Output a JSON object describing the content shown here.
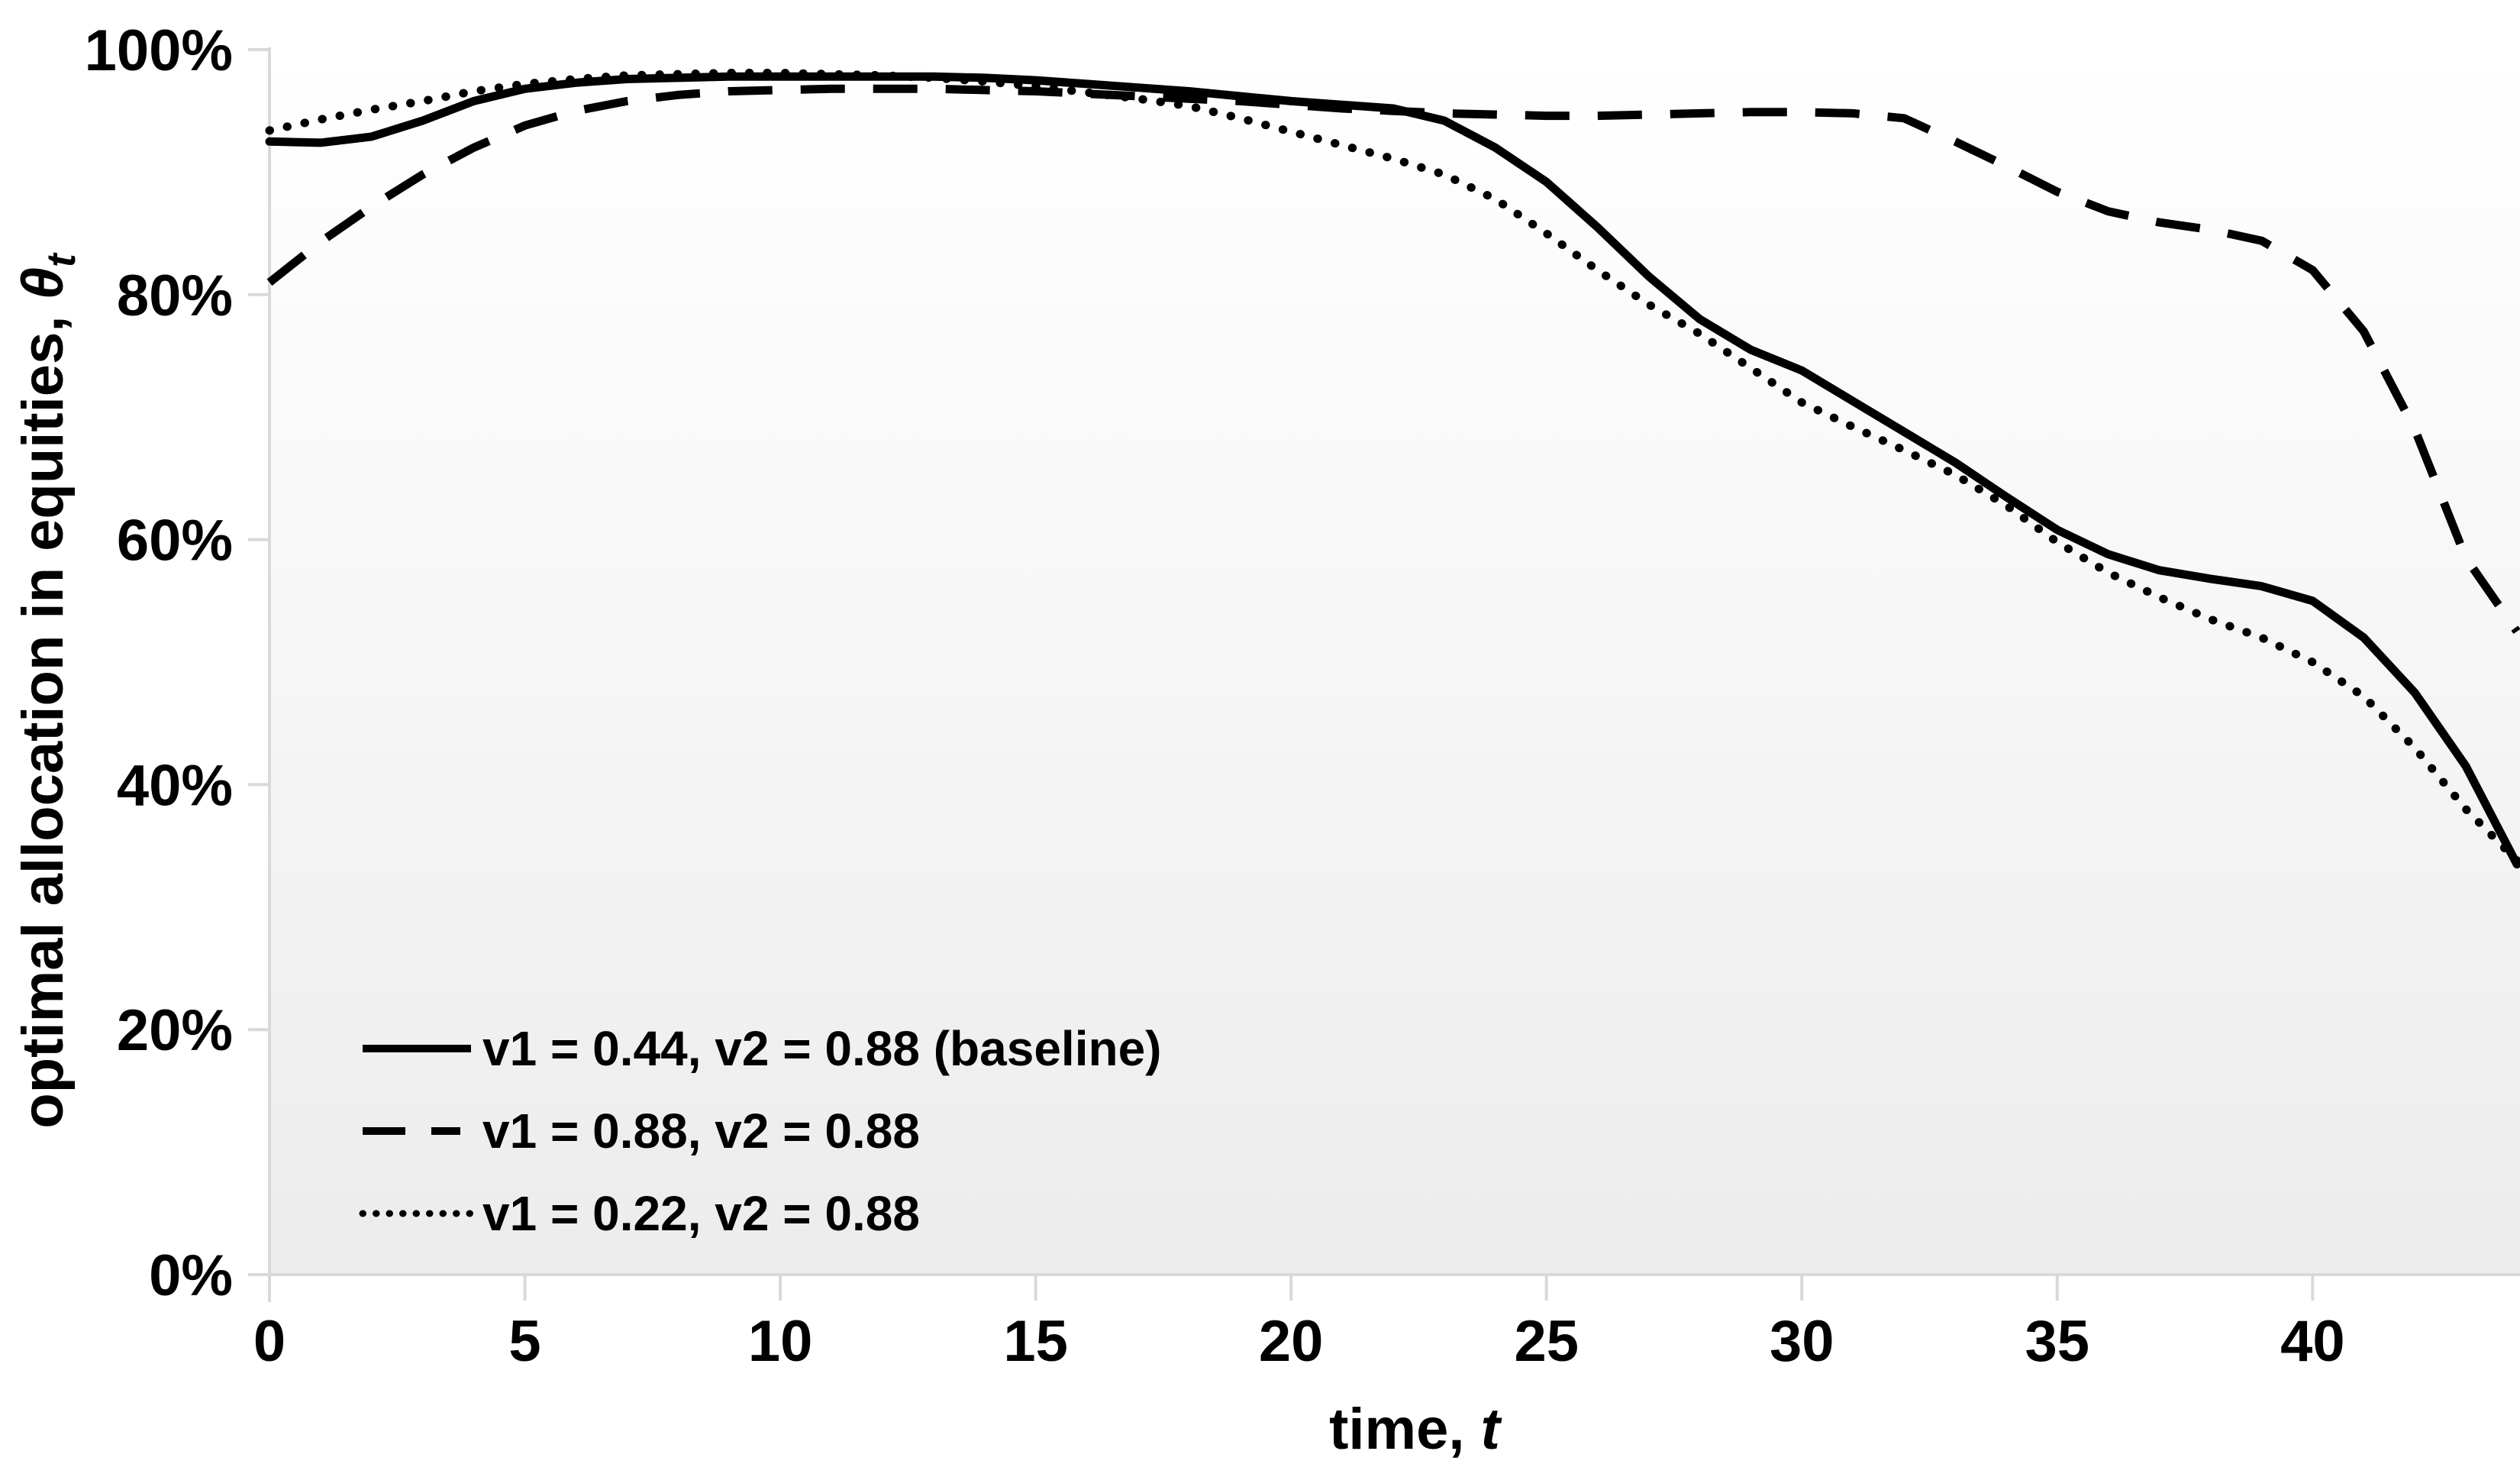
{
  "chart_data": {
    "type": "line",
    "title": "",
    "xlabel_main": "time, ",
    "xlabel_var": "t",
    "ylabel_main": "optimal allocation in equities, ",
    "ylabel_symbol": "θ",
    "ylabel_symbol_sub": "t",
    "xlim": [
      0,
      44
    ],
    "ylim": [
      0,
      100
    ],
    "grid": false,
    "legend_position": "inside bottom-left",
    "line_color": "#000000",
    "axis_color": "#d9d9d9",
    "plot_bg_top": "#ffffff",
    "plot_bg_bottom": "#ececec",
    "x_ticks": [
      {
        "label": "0",
        "value": 0
      },
      {
        "label": "5",
        "value": 5
      },
      {
        "label": "10",
        "value": 10
      },
      {
        "label": "15",
        "value": 15
      },
      {
        "label": "20",
        "value": 20
      },
      {
        "label": "25",
        "value": 25
      },
      {
        "label": "30",
        "value": 30
      },
      {
        "label": "35",
        "value": 35
      },
      {
        "label": "40",
        "value": 40
      }
    ],
    "y_ticks": [
      {
        "label": "100%",
        "value": 100
      },
      {
        "label": "80%",
        "value": 80
      },
      {
        "label": "60%",
        "value": 60
      },
      {
        "label": "40%",
        "value": 40
      },
      {
        "label": "20%",
        "value": 20
      },
      {
        "label": "0%",
        "value": 0
      }
    ],
    "x": [
      0,
      1,
      2,
      3,
      4,
      5,
      6,
      7,
      8,
      9,
      10,
      11,
      12,
      13,
      14,
      15,
      16,
      17,
      18,
      19,
      20,
      21,
      22,
      23,
      24,
      25,
      26,
      27,
      28,
      29,
      30,
      31,
      32,
      33,
      34,
      35,
      36,
      37,
      38,
      39,
      40,
      41,
      42,
      43,
      44
    ],
    "series": [
      {
        "id": "baseline",
        "name": "v1 = 0.44, v2 = 0.88 (baseline)",
        "style": "solid",
        "values": [
          92.5,
          92.4,
          92.9,
          94.2,
          95.8,
          96.8,
          97.3,
          97.6,
          97.7,
          97.8,
          97.8,
          97.8,
          97.8,
          97.8,
          97.7,
          97.5,
          97.2,
          96.9,
          96.6,
          96.2,
          95.8,
          95.5,
          95.2,
          94.2,
          92.0,
          89.2,
          85.5,
          81.5,
          78.0,
          75.5,
          73.8,
          71.3,
          68.8,
          66.3,
          63.5,
          60.8,
          58.8,
          57.5,
          56.8,
          56.2,
          55.0,
          52.0,
          47.5,
          41.5,
          33.5
        ]
      },
      {
        "id": "v1-high",
        "name": "v1 = 0.88, v2 = 0.88",
        "style": "dashed",
        "values": [
          81.0,
          84.3,
          87.2,
          89.8,
          92.0,
          93.8,
          95.0,
          95.8,
          96.3,
          96.6,
          96.7,
          96.8,
          96.8,
          96.8,
          96.7,
          96.6,
          96.4,
          96.2,
          96.0,
          95.8,
          95.5,
          95.2,
          95.0,
          94.8,
          94.7,
          94.6,
          94.6,
          94.7,
          94.8,
          94.9,
          94.9,
          94.8,
          94.4,
          92.5,
          90.5,
          88.4,
          86.8,
          85.9,
          85.3,
          84.4,
          82.0,
          77.0,
          69.0,
          58.5,
          52.5
        ]
      },
      {
        "id": "v1-low",
        "name": "v1 = 0.22, v2 = 0.88",
        "style": "dotted",
        "values": [
          93.4,
          94.3,
          95.1,
          95.8,
          96.6,
          97.2,
          97.6,
          97.9,
          98.0,
          98.1,
          98.1,
          98.0,
          97.9,
          97.7,
          97.4,
          97.0,
          96.5,
          96.0,
          95.4,
          94.4,
          93.3,
          92.2,
          91.1,
          89.8,
          87.8,
          85.0,
          82.0,
          79.2,
          76.8,
          74.0,
          71.2,
          69.2,
          67.3,
          65.3,
          62.8,
          59.8,
          57.3,
          55.3,
          53.5,
          52.0,
          50.0,
          47.2,
          43.0,
          38.0,
          33.8
        ]
      }
    ]
  }
}
